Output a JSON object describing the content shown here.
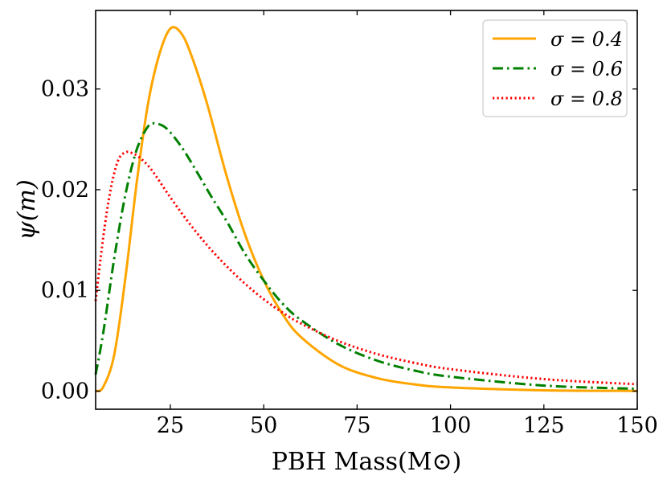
{
  "chart_data": {
    "type": "line",
    "title": "",
    "xlabel": "PBH Mass(M⊙)",
    "ylabel": "ψ(m)",
    "xlim": [
      5,
      150
    ],
    "ylim": [
      -0.0018,
      0.0378
    ],
    "xticks": [
      25,
      50,
      75,
      100,
      125,
      150
    ],
    "xtick_labels": [
      "25",
      "50",
      "75",
      "100",
      "125",
      "150"
    ],
    "yticks": [
      0.0,
      0.01,
      0.02,
      0.03
    ],
    "ytick_labels": [
      "0.00",
      "0.01",
      "0.02",
      "0.03"
    ],
    "grid": false,
    "legend_position": "top-right",
    "series": [
      {
        "name": "σ = 0.4",
        "color": "#ffa500",
        "style": "solid",
        "x": [
          5,
          7,
          10,
          13,
          16,
          19,
          22,
          25,
          28,
          31,
          35,
          40,
          45,
          50,
          55,
          60,
          70,
          80,
          90,
          100,
          125,
          150
        ],
        "y": [
          2e-05,
          0.00039,
          0.00363,
          0.01133,
          0.02069,
          0.02849,
          0.03338,
          0.036,
          0.03549,
          0.03295,
          0.02834,
          0.02145,
          0.01556,
          0.01101,
          0.00767,
          0.00535,
          0.00264,
          0.00132,
          0.00068,
          0.00036,
          8e-05,
          2e-05
        ]
      },
      {
        "name": "σ = 0.6",
        "color": "#008000",
        "style": "dashdot",
        "x": [
          5,
          7,
          10,
          13,
          16,
          19,
          21,
          24,
          28,
          32,
          36,
          40,
          45,
          50,
          55,
          60,
          70,
          80,
          90,
          100,
          125,
          150
        ],
        "y": [
          0.00164,
          0.0057,
          0.01321,
          0.01956,
          0.02398,
          0.02627,
          0.02657,
          0.02608,
          0.02424,
          0.02183,
          0.0193,
          0.01692,
          0.01364,
          0.01098,
          0.00871,
          0.00705,
          0.00465,
          0.00307,
          0.00207,
          0.00143,
          0.00055,
          0.00023
        ]
      },
      {
        "name": "σ = 0.8",
        "color": "#ff0000",
        "style": "dotted",
        "x": [
          5,
          7,
          9,
          11,
          13,
          15,
          17,
          20,
          25,
          30,
          35,
          40,
          45,
          50,
          55,
          60,
          70,
          80,
          90,
          100,
          125,
          150
        ],
        "y": [
          0.00895,
          0.01518,
          0.01999,
          0.02289,
          0.02371,
          0.0236,
          0.02312,
          0.02196,
          0.01924,
          0.0167,
          0.01442,
          0.01243,
          0.01066,
          0.00912,
          0.00781,
          0.0067,
          0.00497,
          0.00372,
          0.00283,
          0.00218,
          0.00119,
          0.00068
        ]
      }
    ]
  }
}
